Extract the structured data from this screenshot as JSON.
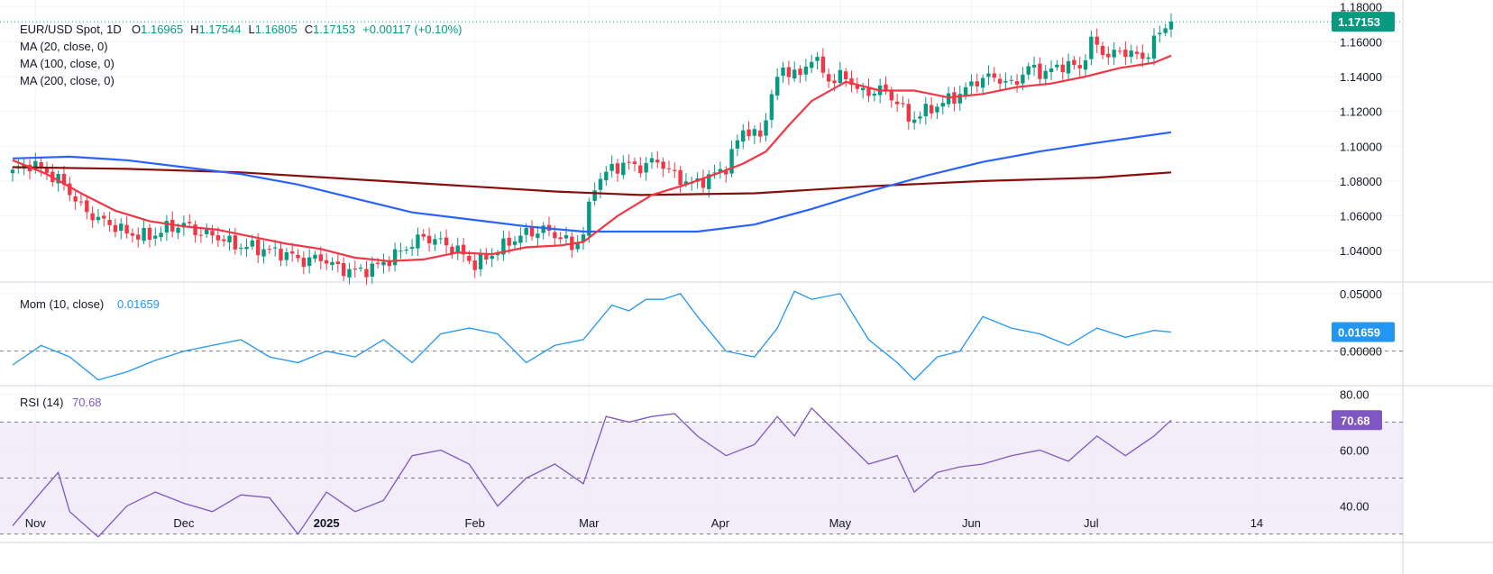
{
  "header": {
    "symbol": "EUR/USD Spot, 1D",
    "ohlc": [
      {
        "k": "O",
        "v": "1.16965"
      },
      {
        "k": "H",
        "v": "1.17544"
      },
      {
        "k": "L",
        "v": "1.16805"
      },
      {
        "k": "C",
        "v": "1.17153"
      }
    ],
    "change": "+0.00117 (+0.10%)"
  },
  "colors": {
    "up": "#089981",
    "down": "#f23645",
    "ma20": "#f23645",
    "ma100": "#2962ff",
    "ma200": "#880e0e",
    "mom": "#2196f3",
    "rsi": "#7e57c2",
    "rsi_band": "#ede7f6"
  },
  "chart_data": [
    {
      "type": "candlestick",
      "name": "price",
      "legend": [
        "MA (20, close, 0)",
        "MA (100, close, 0)",
        "MA (200, close, 0)"
      ],
      "y_ticks": [
        "1.18000",
        "1.16000",
        "1.14000",
        "1.12000",
        "1.10000",
        "1.08000",
        "1.06000",
        "1.04000"
      ],
      "ylim": [
        1.022,
        1.184
      ],
      "last_price_label": "1.17153",
      "last_close": 1.17153,
      "x_ticks": [
        "Nov",
        "Dec",
        "2025",
        "Feb",
        "Mar",
        "Apr",
        "May",
        "Jun",
        "Jul",
        "14"
      ],
      "anchors": [
        [
          0,
          1.085
        ],
        [
          3,
          1.09
        ],
        [
          6,
          1.085
        ],
        [
          9,
          1.078
        ],
        [
          12,
          1.065
        ],
        [
          15,
          1.058
        ],
        [
          18,
          1.054
        ],
        [
          20,
          1.05
        ],
        [
          24,
          1.048
        ],
        [
          27,
          1.053
        ],
        [
          30,
          1.055
        ],
        [
          33,
          1.05
        ],
        [
          36,
          1.048
        ],
        [
          39,
          1.043
        ],
        [
          42,
          1.042
        ],
        [
          45,
          1.04
        ],
        [
          48,
          1.038
        ],
        [
          51,
          1.034
        ],
        [
          54,
          1.036
        ],
        [
          57,
          1.03
        ],
        [
          60,
          1.028
        ],
        [
          63,
          1.03
        ],
        [
          66,
          1.035
        ],
        [
          69,
          1.042
        ],
        [
          72,
          1.048
        ],
        [
          75,
          1.045
        ],
        [
          78,
          1.04
        ],
        [
          81,
          1.032
        ],
        [
          84,
          1.038
        ],
        [
          87,
          1.045
        ],
        [
          90,
          1.05
        ],
        [
          93,
          1.052
        ],
        [
          96,
          1.048
        ],
        [
          98,
          1.042
        ],
        [
          100,
          1.05
        ],
        [
          102,
          1.078
        ],
        [
          104,
          1.085
        ],
        [
          107,
          1.09
        ],
        [
          110,
          1.088
        ],
        [
          113,
          1.092
        ],
        [
          116,
          1.083
        ],
        [
          119,
          1.078
        ],
        [
          122,
          1.082
        ],
        [
          125,
          1.088
        ],
        [
          128,
          1.11
        ],
        [
          131,
          1.105
        ],
        [
          133,
          1.13
        ],
        [
          135,
          1.145
        ],
        [
          138,
          1.14
        ],
        [
          140,
          1.152
        ],
        [
          143,
          1.138
        ],
        [
          146,
          1.14
        ],
        [
          149,
          1.13
        ],
        [
          152,
          1.133
        ],
        [
          155,
          1.126
        ],
        [
          157,
          1.115
        ],
        [
          160,
          1.12
        ],
        [
          163,
          1.125
        ],
        [
          166,
          1.13
        ],
        [
          169,
          1.138
        ],
        [
          172,
          1.14
        ],
        [
          175,
          1.135
        ],
        [
          178,
          1.145
        ],
        [
          181,
          1.142
        ],
        [
          184,
          1.147
        ],
        [
          187,
          1.145
        ],
        [
          189,
          1.16
        ],
        [
          192,
          1.152
        ],
        [
          195,
          1.155
        ],
        [
          198,
          1.15
        ],
        [
          201,
          1.165
        ],
        [
          203,
          1.1715
        ]
      ],
      "ma20": [
        [
          0,
          1.092
        ],
        [
          6,
          1.084
        ],
        [
          12,
          1.073
        ],
        [
          18,
          1.063
        ],
        [
          24,
          1.057
        ],
        [
          30,
          1.054
        ],
        [
          36,
          1.052
        ],
        [
          42,
          1.048
        ],
        [
          48,
          1.044
        ],
        [
          54,
          1.041
        ],
        [
          60,
          1.036
        ],
        [
          66,
          1.034
        ],
        [
          72,
          1.035
        ],
        [
          78,
          1.039
        ],
        [
          84,
          1.038
        ],
        [
          90,
          1.042
        ],
        [
          96,
          1.043
        ],
        [
          100,
          1.045
        ],
        [
          106,
          1.06
        ],
        [
          112,
          1.072
        ],
        [
          118,
          1.078
        ],
        [
          124,
          1.085
        ],
        [
          128,
          1.09
        ],
        [
          132,
          1.097
        ],
        [
          136,
          1.112
        ],
        [
          140,
          1.126
        ],
        [
          146,
          1.137
        ],
        [
          152,
          1.132
        ],
        [
          158,
          1.132
        ],
        [
          164,
          1.128
        ],
        [
          170,
          1.13
        ],
        [
          176,
          1.134
        ],
        [
          182,
          1.136
        ],
        [
          188,
          1.14
        ],
        [
          194,
          1.145
        ],
        [
          200,
          1.148
        ],
        [
          203,
          1.152
        ]
      ],
      "ma100": [
        [
          0,
          1.093
        ],
        [
          10,
          1.094
        ],
        [
          20,
          1.092
        ],
        [
          30,
          1.088
        ],
        [
          40,
          1.084
        ],
        [
          50,
          1.078
        ],
        [
          60,
          1.07
        ],
        [
          70,
          1.062
        ],
        [
          80,
          1.058
        ],
        [
          90,
          1.054
        ],
        [
          100,
          1.051
        ],
        [
          110,
          1.051
        ],
        [
          120,
          1.051
        ],
        [
          130,
          1.055
        ],
        [
          140,
          1.064
        ],
        [
          150,
          1.074
        ],
        [
          160,
          1.083
        ],
        [
          170,
          1.091
        ],
        [
          180,
          1.097
        ],
        [
          190,
          1.102
        ],
        [
          203,
          1.108
        ]
      ],
      "ma200": [
        [
          0,
          1.088
        ],
        [
          20,
          1.087
        ],
        [
          40,
          1.085
        ],
        [
          60,
          1.081
        ],
        [
          80,
          1.077
        ],
        [
          95,
          1.074
        ],
        [
          110,
          1.072
        ],
        [
          130,
          1.073
        ],
        [
          150,
          1.077
        ],
        [
          170,
          1.08
        ],
        [
          190,
          1.082
        ],
        [
          203,
          1.085
        ]
      ]
    },
    {
      "type": "line",
      "name": "momentum",
      "legend_name": "Mom (10, close)",
      "value_label": "0.01659",
      "last_value": 0.01659,
      "y_ticks": [
        "0.05000",
        "0.00000"
      ],
      "tick_values": [
        0.05,
        0.0
      ],
      "ylim": [
        -0.03,
        0.06
      ],
      "zero_line": 0.0,
      "x": [
        0,
        5,
        10,
        15,
        20,
        25,
        30,
        35,
        40,
        45,
        50,
        55,
        60,
        65,
        70,
        75,
        80,
        85,
        90,
        95,
        100,
        105,
        108,
        111,
        114,
        117,
        120,
        125,
        130,
        134,
        137,
        140,
        145,
        150,
        155,
        158,
        162,
        166,
        170,
        175,
        180,
        185,
        190,
        195,
        200,
        203
      ],
      "y": [
        -0.012,
        0.005,
        -0.005,
        -0.025,
        -0.018,
        -0.008,
        0.0,
        0.005,
        0.01,
        -0.005,
        -0.01,
        0.0,
        -0.005,
        0.01,
        -0.01,
        0.015,
        0.02,
        0.015,
        -0.01,
        0.005,
        0.01,
        0.04,
        0.035,
        0.045,
        0.045,
        0.05,
        0.03,
        0.0,
        -0.005,
        0.02,
        0.052,
        0.045,
        0.05,
        0.01,
        -0.01,
        -0.025,
        -0.005,
        0.0,
        0.03,
        0.02,
        0.015,
        0.005,
        0.02,
        0.012,
        0.018,
        0.01659
      ]
    },
    {
      "type": "line",
      "name": "rsi",
      "legend_name": "RSI (14)",
      "value_label": "70.68",
      "last_value": 70.68,
      "y_ticks": [
        "80.00",
        "60.00",
        "40.00"
      ],
      "tick_values": [
        80,
        60,
        40
      ],
      "ylim": [
        27,
        83
      ],
      "band": [
        30,
        70
      ],
      "mid": 50,
      "x": [
        0,
        5,
        8,
        10,
        15,
        20,
        25,
        30,
        35,
        40,
        45,
        50,
        55,
        60,
        65,
        70,
        75,
        80,
        85,
        90,
        95,
        100,
        104,
        108,
        112,
        116,
        120,
        125,
        130,
        134,
        137,
        140,
        145,
        150,
        155,
        158,
        162,
        166,
        170,
        175,
        180,
        185,
        190,
        195,
        200,
        203
      ],
      "y": [
        33,
        45,
        52,
        38,
        29,
        40,
        45,
        41,
        38,
        44,
        43,
        30,
        45,
        38,
        42,
        58,
        60,
        55,
        40,
        50,
        55,
        48,
        72,
        70,
        72,
        73,
        65,
        58,
        62,
        72,
        65,
        75,
        65,
        55,
        58,
        45,
        52,
        54,
        55,
        58,
        60,
        56,
        65,
        58,
        65,
        70.68
      ]
    }
  ]
}
